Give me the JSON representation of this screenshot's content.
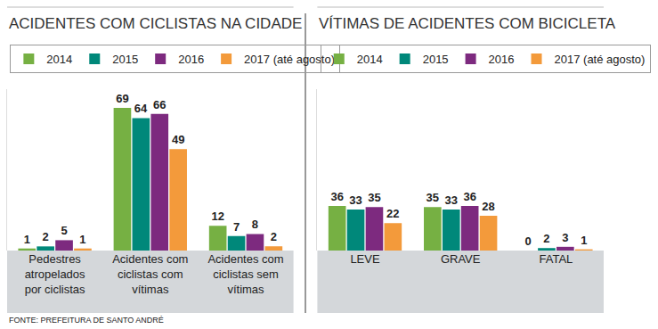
{
  "source": "FONTE: PREFEITURA DE SANTO ANDRÉ",
  "chart_data": [
    {
      "type": "bar",
      "title": "ACIDENTES COM CICLISTAS NA CIDADE",
      "categories": [
        "Pedestres atropelados por ciclistas",
        "Acidentes com ciclistas com vítimas",
        "Acidentes com ciclistas sem vítimas"
      ],
      "series": [
        {
          "name": "2014",
          "color": "#76b043",
          "values": [
            1,
            69,
            12
          ]
        },
        {
          "name": "2015",
          "color": "#00887a",
          "values": [
            2,
            64,
            7
          ]
        },
        {
          "name": "2016",
          "color": "#7d2a7f",
          "values": [
            5,
            66,
            8
          ]
        },
        {
          "name": "2017 (até agosto)",
          "color": "#f39a3b",
          "values": [
            1,
            49,
            2
          ]
        }
      ],
      "ylim": [
        0,
        78
      ],
      "data_labels": true,
      "tick_labels": "x",
      "grid": false,
      "legend": "top-left"
    },
    {
      "type": "bar",
      "title": "VÍTIMAS DE ACIDENTES COM BICICLETA",
      "categories": [
        "LEVE",
        "GRAVE",
        "FATAL"
      ],
      "series": [
        {
          "name": "2014",
          "color": "#76b043",
          "values": [
            36,
            35,
            0
          ]
        },
        {
          "name": "2015",
          "color": "#00887a",
          "values": [
            33,
            33,
            2
          ]
        },
        {
          "name": "2016",
          "color": "#7d2a7f",
          "values": [
            35,
            36,
            3
          ]
        },
        {
          "name": "2017 (até agosto)",
          "color": "#f39a3b",
          "values": [
            22,
            28,
            1
          ]
        }
      ],
      "ylim": [
        0,
        130
      ],
      "data_labels": true,
      "tick_labels": "x",
      "grid": false,
      "legend": "top-left"
    }
  ]
}
